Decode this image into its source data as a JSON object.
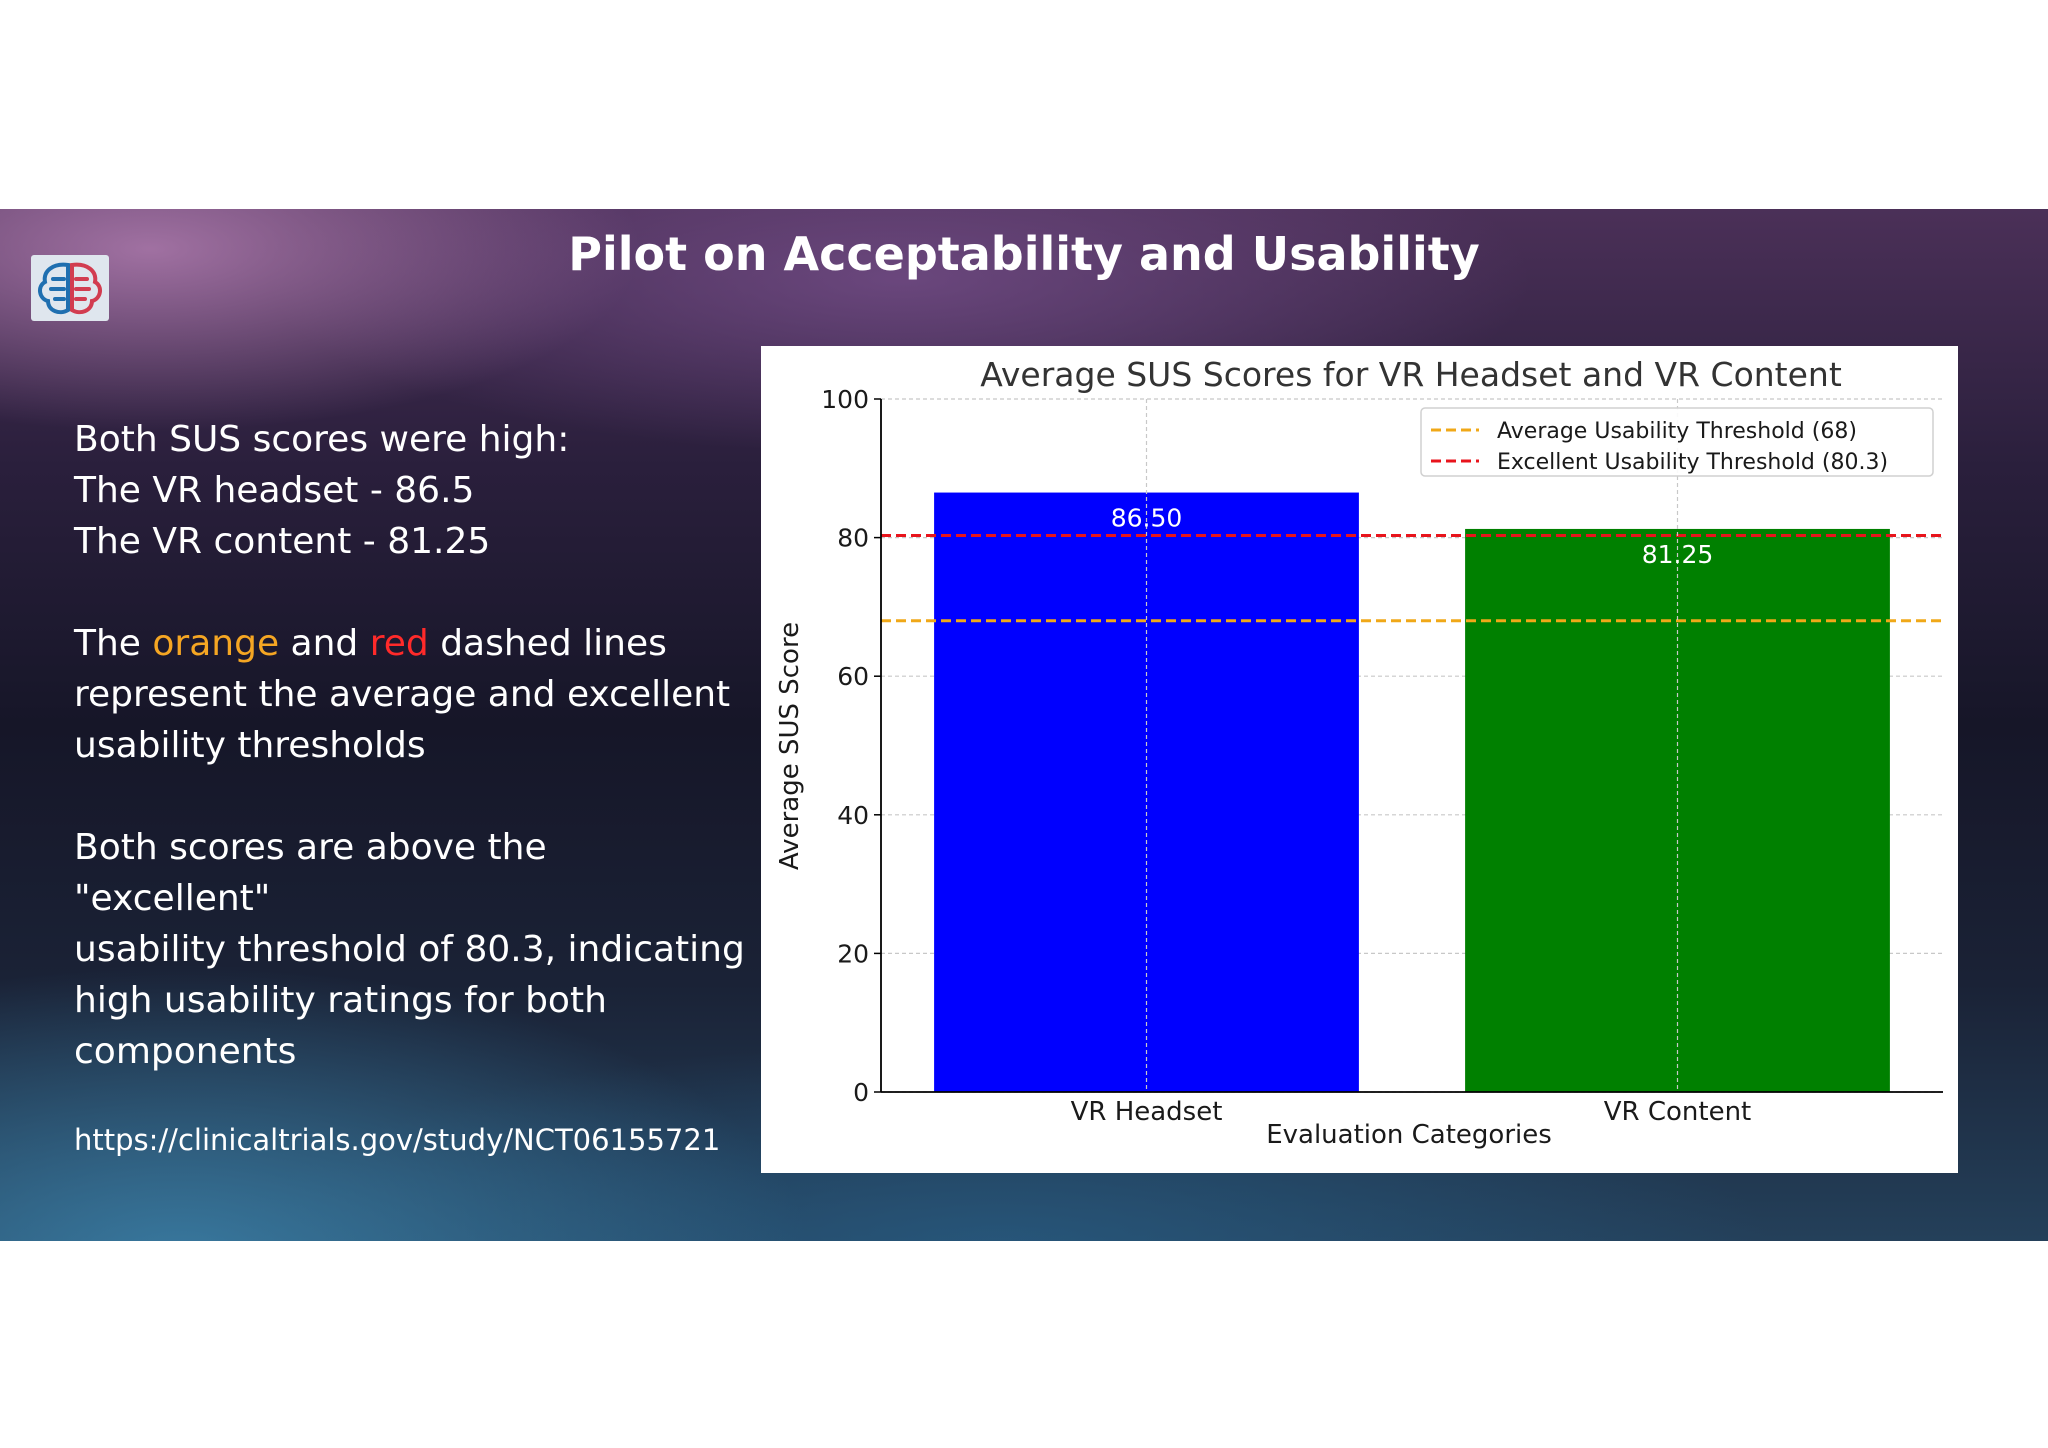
{
  "slide": {
    "title": "Pilot on Acceptability and Usability",
    "logo_icon": "brain-circuit-logo",
    "paragraphs": {
      "p1": [
        "Both SUS scores were high:",
        "The VR headset - 86.5",
        "The VR content - 81.25"
      ],
      "p2": {
        "prefix": "The ",
        "orange_word": "orange",
        "middle": " and ",
        "red_word": "red",
        "suffix": " dashed lines",
        "line2": "represent the average and excellent",
        "line3": "usability thresholds"
      },
      "p3": [
        "Both scores are above the \"excellent\"",
        "usability threshold of 80.3, indicating",
        "high usability ratings for both",
        "components"
      ]
    },
    "url": "https://clinicaltrials.gov/study/NCT06155721"
  },
  "chart_data": {
    "type": "bar",
    "title": "Average SUS Scores for VR Headset and VR Content",
    "xlabel": "Evaluation Categories",
    "ylabel": "Average SUS Score",
    "categories": [
      "VR Headset",
      "VR Content"
    ],
    "values": [
      86.5,
      81.25
    ],
    "value_labels": [
      "86.50",
      "81.25"
    ],
    "bar_colors": [
      "#0000ff",
      "#008000"
    ],
    "ylim": [
      0,
      100
    ],
    "yticks": [
      0,
      20,
      40,
      60,
      80,
      100
    ],
    "grid": true,
    "legend_position": "top-right",
    "thresholds": [
      {
        "name": "Average Usability Threshold (68)",
        "value": 68,
        "color": "#f0a818"
      },
      {
        "name": "Excellent Usability Threshold (80.3)",
        "value": 80.3,
        "color": "#e8141c"
      }
    ]
  }
}
